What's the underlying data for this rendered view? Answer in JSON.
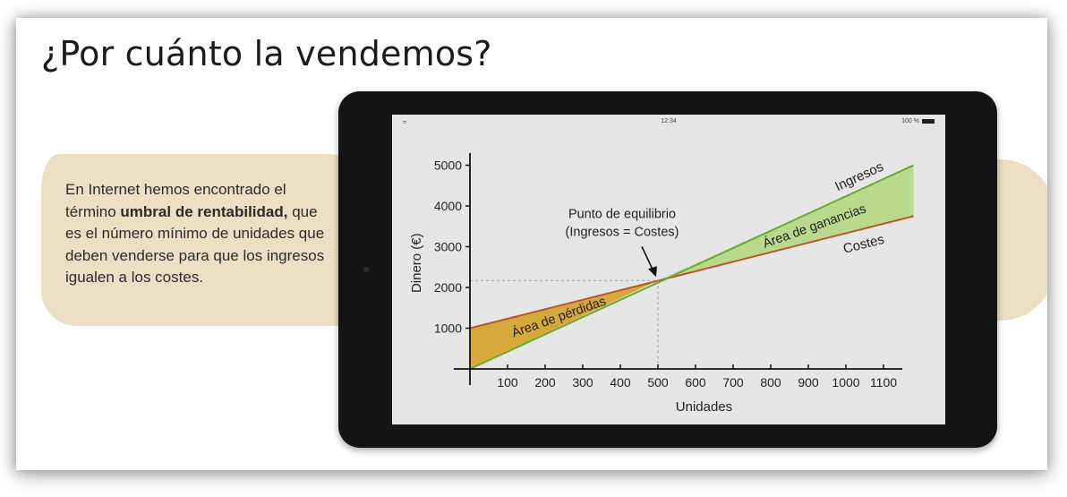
{
  "slide": {
    "title": "¿Por cuánto la vendemos?",
    "info_parts": [
      "En Internet hemos encontrado el término ",
      "umbral de rentabilidad,",
      " que es el número mínimo de unidades que deben venderse para que los ingresos igualen a los costes."
    ]
  },
  "tablet": {
    "status_time": "12:34",
    "status_battery": "100 %"
  },
  "colors": {
    "ingresos_line": "#6aaa3a",
    "costes_line": "#b8582a",
    "ganancias_fill": "#b9d98d",
    "perdidas_fill": "#d7a83a",
    "blob": "#ecdfc3"
  },
  "chart_data": {
    "type": "line",
    "xlabel": "Unidades",
    "ylabel": "Dinero (€)",
    "xlim": [
      0,
      1150
    ],
    "ylim": [
      0,
      5300
    ],
    "x_ticks": [
      100,
      200,
      300,
      400,
      500,
      600,
      700,
      800,
      900,
      1000,
      1100
    ],
    "y_ticks": [
      1000,
      2000,
      3000,
      4000,
      5000
    ],
    "series": [
      {
        "name": "Ingresos",
        "x": [
          0,
          1180
        ],
        "y": [
          0,
          5000
        ]
      },
      {
        "name": "Costes",
        "x": [
          0,
          1180
        ],
        "y": [
          1000,
          3750
        ]
      }
    ],
    "break_even": {
      "x": 500,
      "y": 2170
    },
    "annotations": {
      "break_even_line1": "Punto de equilibrio",
      "break_even_line2": "(Ingresos = Costes)",
      "gain_area": "Área de ganancias",
      "loss_area": "Área de pérdidas"
    }
  }
}
